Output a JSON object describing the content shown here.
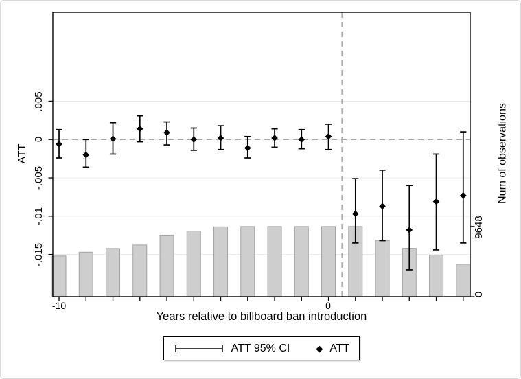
{
  "figure": {
    "left_axis": {
      "title": "ATT",
      "tick_labels": [
        ".005",
        "0",
        "-.005",
        "-.01",
        "-.015"
      ]
    },
    "right_axis": {
      "title": "Num of observations",
      "tick_labels": [
        "9648",
        "0"
      ]
    },
    "x_axis": {
      "title": "Years relative to billboard ban introduction",
      "tick_labels": [
        "-10",
        "0"
      ]
    },
    "legend": {
      "ci_label": "ATT 95% CI",
      "att_label": "ATT",
      "diamond_glyph": "◆"
    }
  },
  "chart_data": {
    "type": "combo",
    "subtype": "event-study scatter with 95% CI error bars (left axis) plus observation-count bars (right axis)",
    "x": [
      -10,
      -9,
      -8,
      -7,
      -6,
      -5,
      -4,
      -3,
      -2,
      -1,
      0,
      1,
      2,
      3,
      4,
      5
    ],
    "series": [
      {
        "name": "ATT",
        "type": "scatter",
        "marker": "diamond",
        "axis": "left",
        "color": "#000000",
        "values": [
          -0.0006,
          -0.002,
          0.0001,
          0.0014,
          0.0009,
          0.0,
          0.0002,
          -0.0011,
          0.0002,
          0.0,
          0.0004,
          -0.0097,
          -0.0087,
          -0.0118,
          -0.0081,
          -0.0073
        ]
      },
      {
        "name": "ATT 95% CI",
        "type": "errorbar",
        "axis": "left",
        "color": "#000000",
        "low": [
          -0.0024,
          -0.0036,
          -0.0019,
          -0.0003,
          -0.0007,
          -0.0014,
          -0.0013,
          -0.0024,
          -0.001,
          -0.0012,
          -0.0013,
          -0.0135,
          -0.0132,
          -0.017,
          -0.0144,
          -0.0135
        ],
        "high": [
          0.0013,
          0.0,
          0.0022,
          0.0031,
          0.0023,
          0.0015,
          0.0018,
          0.0004,
          0.0014,
          0.0013,
          0.002,
          -0.0051,
          -0.004,
          -0.006,
          -0.0019,
          0.001
        ]
      },
      {
        "name": "Num of observations",
        "type": "bar",
        "axis": "right",
        "color": "#cecece",
        "border_color": "#a3a3a3",
        "values": [
          5590,
          6110,
          6620,
          7090,
          8460,
          9020,
          9600,
          9648,
          9648,
          9648,
          9648,
          9648,
          7730,
          6650,
          5710,
          4450
        ]
      }
    ],
    "title": "",
    "xlabel": "Years relative to billboard ban introduction",
    "ylabel": "ATT",
    "y2label": "Num of observations",
    "xlim": [
      -10.23,
      5.26
    ],
    "ylim": [
      -0.0205,
      0.0166
    ],
    "y2lim": [
      0,
      39100
    ],
    "left_ticks": [
      0.005,
      0,
      -0.005,
      -0.01,
      -0.015
    ],
    "right_ticks": [
      9648,
      0
    ],
    "x_ticks": [
      -10,
      -9,
      -8,
      -7,
      -6,
      -5,
      -4,
      -3,
      -2,
      -1,
      0,
      1,
      2,
      3,
      4,
      5
    ],
    "x_labeled_ticks": [
      -10,
      0
    ],
    "reference_lines": {
      "horizontal_y": 0,
      "vertical_x": 0.5,
      "style": "dashed",
      "color": "#a9a9a9"
    },
    "grid": "horizontal",
    "grid_color": "#e9e9e9",
    "legend_position": "bottom-center"
  }
}
